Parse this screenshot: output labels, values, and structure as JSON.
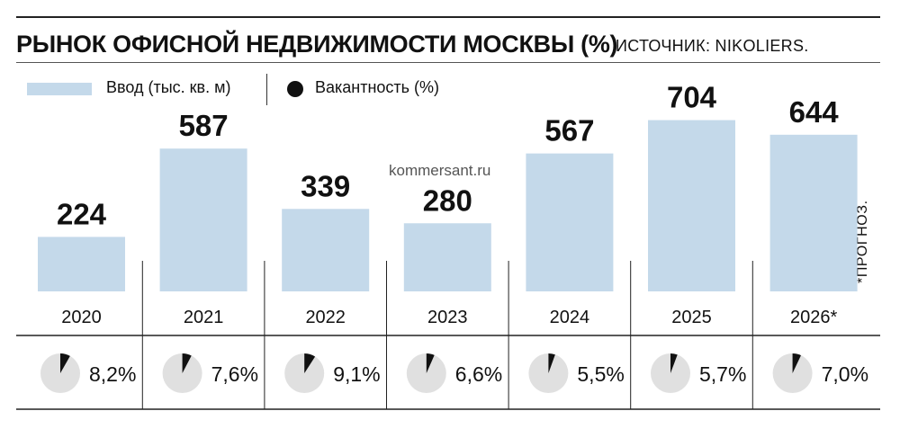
{
  "title": "РЫНОК ОФИСНОЙ НЕДВИЖИМОСТИ МОСКВЫ (%)",
  "source": "ИСТОЧНИК: NIKOLIERS.",
  "watermark": "kommersant.ru",
  "note": "*ПРОГНОЗ.",
  "colors": {
    "bar": "#c4d9ea",
    "pie_bg": "#e0e0e0",
    "pie_slice": "#111111",
    "line": "#222222"
  },
  "chart_data": {
    "type": "bar",
    "title": "РЫНОК ОФИСНОЙ НЕДВИЖИМОСТИ МОСКВЫ (%)",
    "categories": [
      "2020",
      "2021",
      "2022",
      "2023",
      "2024",
      "2025",
      "2026*"
    ],
    "series": [
      {
        "name": "Ввод (тыс. кв. м)",
        "values": [
          224,
          587,
          339,
          280,
          567,
          704,
          644
        ]
      },
      {
        "name": "Вакантность (%)",
        "values": [
          8.2,
          7.6,
          9.1,
          6.6,
          5.5,
          5.7,
          7.0
        ],
        "labels": [
          "8,2%",
          "7,6%",
          "9,1%",
          "6,6%",
          "5,5%",
          "5,7%",
          "7,0%"
        ]
      }
    ],
    "legend": "top-left",
    "grid": false
  }
}
